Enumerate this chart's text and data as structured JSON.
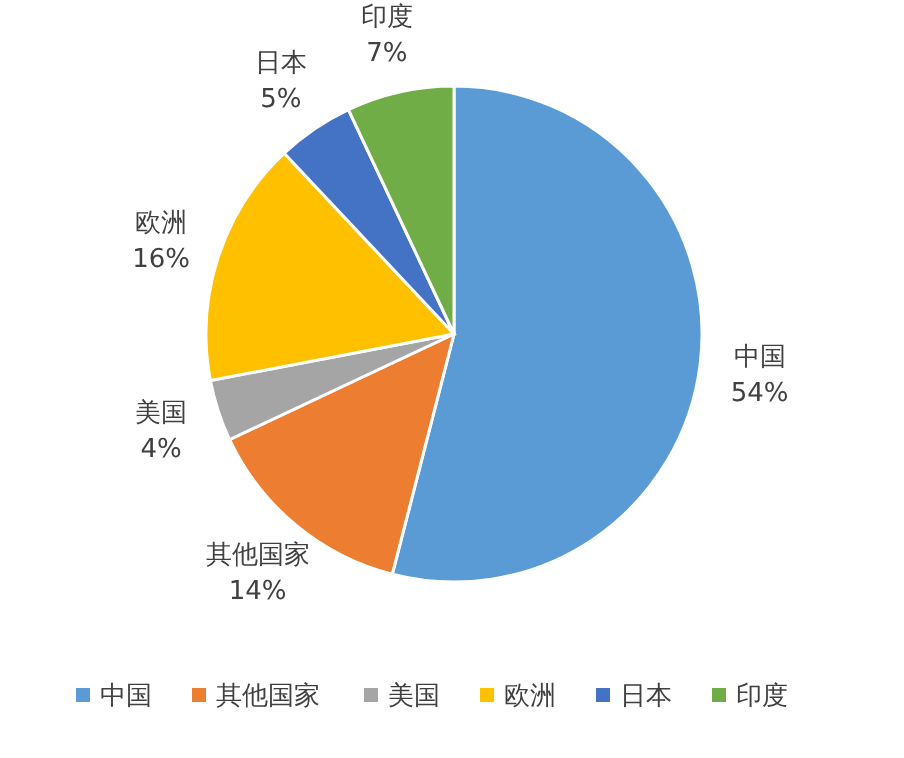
{
  "chart_data": {
    "type": "pie",
    "categories": [
      "中国",
      "其他国家",
      "美国",
      "欧洲",
      "日本",
      "印度"
    ],
    "values": [
      54,
      14,
      4,
      16,
      5,
      7
    ],
    "colors": [
      "#5b9bd5",
      "#ed7d31",
      "#a5a5a5",
      "#ffc000",
      "#4472c4",
      "#70ad47"
    ],
    "value_labels": [
      "54%",
      "14%",
      "4%",
      "16%",
      "5%",
      "7%"
    ],
    "legend": "bottom"
  }
}
